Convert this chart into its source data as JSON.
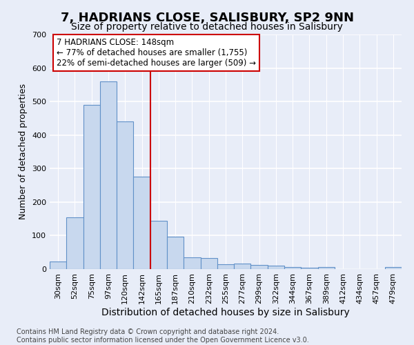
{
  "title": "7, HADRIANS CLOSE, SALISBURY, SP2 9NN",
  "subtitle": "Size of property relative to detached houses in Salisbury",
  "xlabel": "Distribution of detached houses by size in Salisbury",
  "ylabel": "Number of detached properties",
  "categories": [
    "30sqm",
    "52sqm",
    "75sqm",
    "97sqm",
    "120sqm",
    "142sqm",
    "165sqm",
    "187sqm",
    "210sqm",
    "232sqm",
    "255sqm",
    "277sqm",
    "299sqm",
    "322sqm",
    "344sqm",
    "367sqm",
    "389sqm",
    "412sqm",
    "434sqm",
    "457sqm",
    "479sqm"
  ],
  "values": [
    22,
    155,
    490,
    560,
    440,
    275,
    145,
    97,
    35,
    32,
    15,
    17,
    12,
    11,
    7,
    5,
    6,
    0,
    0,
    0,
    6
  ],
  "bar_color": "#c8d8ee",
  "bar_edge_color": "#6090c8",
  "background_color": "#e8edf8",
  "grid_color": "#ffffff",
  "marker_line_color": "#cc0000",
  "marker_bin_index": 5,
  "annotation_text": "7 HADRIANS CLOSE: 148sqm\n← 77% of detached houses are smaller (1,755)\n22% of semi-detached houses are larger (509) →",
  "annotation_box_facecolor": "#ffffff",
  "annotation_box_edgecolor": "#cc0000",
  "footer_line1": "Contains HM Land Registry data © Crown copyright and database right 2024.",
  "footer_line2": "Contains public sector information licensed under the Open Government Licence v3.0.",
  "ylim": [
    0,
    700
  ],
  "yticks": [
    0,
    100,
    200,
    300,
    400,
    500,
    600,
    700
  ],
  "title_fontsize": 13,
  "subtitle_fontsize": 10,
  "ylabel_fontsize": 9,
  "xlabel_fontsize": 10,
  "tick_fontsize": 8,
  "annotation_fontsize": 8.5,
  "footer_fontsize": 7
}
